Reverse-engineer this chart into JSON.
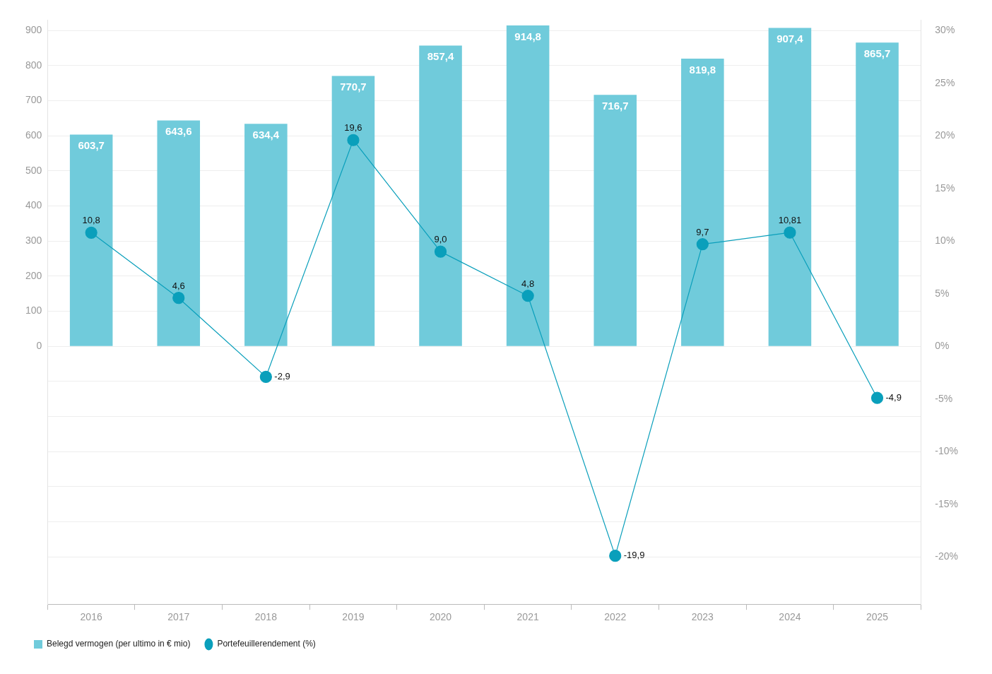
{
  "chart_data": {
    "type": "bar",
    "categories": [
      "2016",
      "2017",
      "2018",
      "2019",
      "2020",
      "2021",
      "2022",
      "2023",
      "2024",
      "2025"
    ],
    "series": [
      {
        "name": "Belegd vermogen (per ultimo in € mio)",
        "color": "#70cbdb",
        "values": [
          603.7,
          643.6,
          634.4,
          770.7,
          857.4,
          914.8,
          716.7,
          819.8,
          907.4,
          865.7
        ],
        "value_labels": [
          "603,7",
          "643,6",
          "634,4",
          "770,7",
          "857,4",
          "914,8",
          "716,7",
          "819,8",
          "907,4",
          "865,7"
        ]
      },
      {
        "name": "Portefeuillerendement (%)",
        "type": "line",
        "axis": "y2",
        "color": "#0a9fbb",
        "marker": "circle",
        "values": [
          10.8,
          4.6,
          -2.9,
          19.6,
          9.0,
          4.8,
          -19.9,
          9.7,
          10.81,
          -4.9
        ],
        "value_labels": [
          "10,8",
          "4,6",
          "-2,9",
          "19,6",
          "9,0",
          "4,8",
          "-19,9",
          "9,7",
          "10,81",
          "-4,9"
        ]
      }
    ],
    "ylim": [
      -735,
      930
    ],
    "yticks": [
      {
        "value": -600,
        "label": null
      },
      {
        "value": -500,
        "label": null
      },
      {
        "value": -400,
        "label": null
      },
      {
        "value": -300,
        "label": null
      },
      {
        "value": -200,
        "label": null
      },
      {
        "value": -100,
        "label": null
      },
      0,
      100,
      200,
      300,
      400,
      500,
      600,
      700,
      800,
      900
    ],
    "y2lim": [
      -24.5,
      31
    ],
    "y2ticks": [
      {
        "value": -20,
        "label": "-20%"
      },
      {
        "value": -15,
        "label": "-15%"
      },
      {
        "value": -10,
        "label": "-10%"
      },
      {
        "value": -5,
        "label": "-5%"
      },
      {
        "value": 0,
        "label": "0%"
      },
      {
        "value": 5,
        "label": "5%"
      },
      {
        "value": 10,
        "label": "10%"
      },
      {
        "value": 15,
        "label": "15%"
      },
      {
        "value": 20,
        "label": "20%"
      },
      {
        "value": 25,
        "label": "25%"
      },
      {
        "value": 30,
        "label": "30%"
      }
    ],
    "grid": "y",
    "legend": "bottom left"
  }
}
